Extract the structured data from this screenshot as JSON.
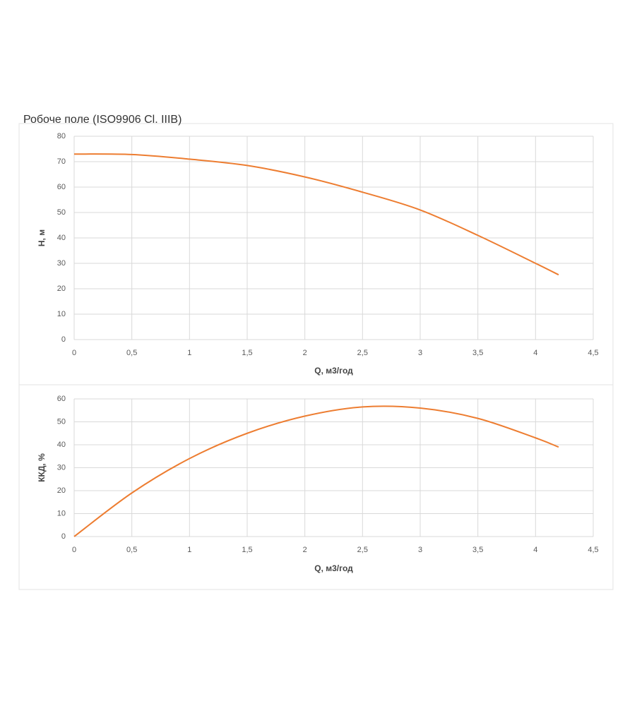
{
  "chart_data": [
    {
      "type": "line",
      "title": "Робоче поле (ISO9906 Cl. IIIB)",
      "x_label": "Q, м3/год",
      "y_label": "H, м",
      "x": [
        0,
        0.5,
        1,
        1.5,
        2,
        2.5,
        3,
        3.5,
        4,
        4.2
      ],
      "series": [
        {
          "name": "H",
          "color": "#ed7d31",
          "values": [
            73,
            72.8,
            71,
            68.5,
            64,
            58,
            51,
            41,
            30,
            25.5
          ]
        }
      ],
      "xlim": [
        0,
        4.5
      ],
      "ylim": [
        0,
        80
      ],
      "xticks": [
        0,
        {
          "value": 0.5,
          "label": "0,5"
        },
        1,
        {
          "value": 1.5,
          "label": "1,5"
        },
        2,
        {
          "value": 2.5,
          "label": "2,5"
        },
        3,
        {
          "value": 3.5,
          "label": "3,5"
        },
        4,
        {
          "value": 4.5,
          "label": "4,5"
        }
      ],
      "yticks": [
        0,
        10,
        20,
        30,
        40,
        50,
        60,
        70,
        80
      ],
      "grid": true
    },
    {
      "type": "line",
      "x_label": "Q, м3/год",
      "y_label": "ККД, %",
      "x": [
        0,
        0.5,
        1,
        1.5,
        2,
        2.5,
        3,
        3.5,
        4,
        4.2
      ],
      "series": [
        {
          "name": "ККД",
          "color": "#ed7d31",
          "values": [
            0,
            19,
            34,
            45,
            52.5,
            56.5,
            56,
            51.5,
            43,
            39
          ]
        }
      ],
      "xlim": [
        0,
        4.5
      ],
      "ylim": [
        0,
        60
      ],
      "xticks": [
        0,
        {
          "value": 0.5,
          "label": "0,5"
        },
        1,
        {
          "value": 1.5,
          "label": "1,5"
        },
        2,
        {
          "value": 2.5,
          "label": "2,5"
        },
        3,
        {
          "value": 3.5,
          "label": "3,5"
        },
        4,
        {
          "value": 4.5,
          "label": "4,5"
        }
      ],
      "yticks": [
        0,
        10,
        20,
        30,
        40,
        50,
        60
      ],
      "grid": true
    }
  ]
}
